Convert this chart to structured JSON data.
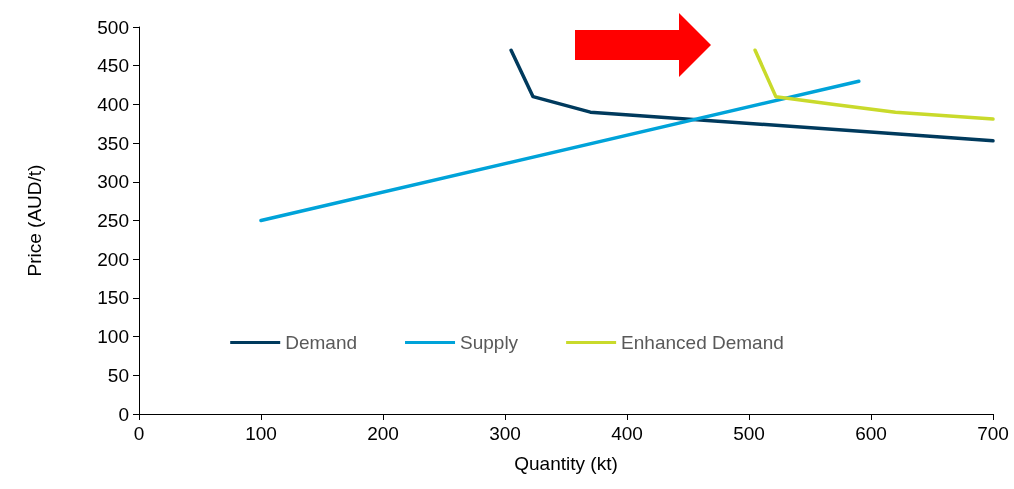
{
  "chart_data": {
    "type": "line",
    "xlabel": "Quantity (kt)",
    "ylabel": "Price (AUD/t)",
    "xlim": [
      0,
      700
    ],
    "xticks": [
      0,
      100,
      200,
      300,
      400,
      500,
      600,
      700
    ],
    "ylim": [
      0,
      500
    ],
    "yticks": [
      0,
      50,
      100,
      150,
      200,
      250,
      300,
      350,
      400,
      450,
      500
    ],
    "grid": false,
    "legend": "bottom",
    "marker": "none",
    "line_style": "solid",
    "series": [
      {
        "name": "Demand",
        "color": "#003a5d",
        "x": [
          305,
          323,
          370,
          700
        ],
        "values": [
          470,
          410,
          390,
          353
        ]
      },
      {
        "name": "Supply",
        "color": "#00a3d9",
        "x": [
          100,
          590
        ],
        "values": [
          250,
          430
        ]
      },
      {
        "name": "Enhanced Demand",
        "color": "#c9da2b",
        "x": [
          505,
          522,
          570,
          620,
          700
        ],
        "values": [
          470,
          410,
          400,
          390,
          381
        ]
      }
    ]
  }
}
